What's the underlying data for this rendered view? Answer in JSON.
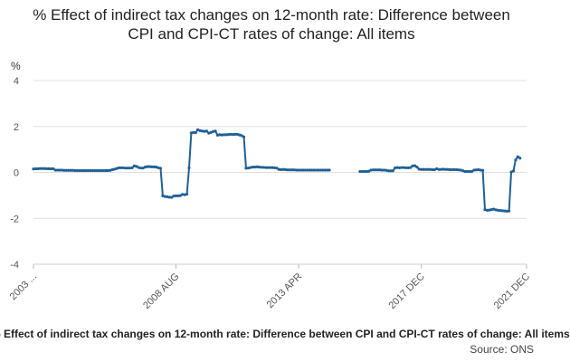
{
  "chart_data": {
    "type": "line",
    "title": "% Effect of indirect tax changes on 12-month rate: Difference between CPI and CPI-CT rates of change: All items",
    "unit_label": "%",
    "xlabel": "",
    "ylabel": "%",
    "ylim": [
      -4,
      4
    ],
    "y_ticks": [
      -4,
      -2,
      0,
      2,
      4
    ],
    "x_ticks": [
      "2003 ...",
      "2008 AUG",
      "2013 APR",
      "2017 DEC",
      "2021 DEC"
    ],
    "x_tick_index": [
      0,
      65,
      121,
      177,
      225
    ],
    "n_points": 226,
    "color": "#206095",
    "series": [
      {
        "name": "All items",
        "segments": [
          {
            "start": 0,
            "values": [
              0.15,
              0.16,
              0.16,
              0.17,
              0.17,
              0.17,
              0.16,
              0.16,
              0.16,
              0.16,
              0.1,
              0.1,
              0.1,
              0.1,
              0.09,
              0.09,
              0.09,
              0.09,
              0.09,
              0.08,
              0.08,
              0.08,
              0.08,
              0.08,
              0.08,
              0.08,
              0.08,
              0.08,
              0.08,
              0.08,
              0.08,
              0.08,
              0.08,
              0.08,
              0.08,
              0.09,
              0.12,
              0.14,
              0.17,
              0.2,
              0.2,
              0.2,
              0.19,
              0.19,
              0.19,
              0.2,
              0.28,
              0.26,
              0.21,
              0.19,
              0.19,
              0.23,
              0.25,
              0.25,
              0.24,
              0.24,
              0.23,
              0.2,
              0.18,
              -1.02,
              -1.05,
              -1.06,
              -1.08,
              -1.09,
              -1.03,
              -1.02,
              -1.02,
              -1.01,
              -0.96,
              -0.97,
              -0.95,
              0.2,
              1.72,
              1.74,
              1.73,
              1.86,
              1.82,
              1.8,
              1.79,
              1.8,
              1.71,
              1.74,
              1.78,
              1.8,
              1.62,
              1.64,
              1.63,
              1.64,
              1.64,
              1.65,
              1.66,
              1.65,
              1.66,
              1.66,
              1.63,
              1.6,
              1.55,
              0.18,
              0.19,
              0.21,
              0.23,
              0.23,
              0.24,
              0.23,
              0.22,
              0.22,
              0.21,
              0.21,
              0.21,
              0.21,
              0.2,
              0.19,
              0.13,
              0.12,
              0.13,
              0.12,
              0.11,
              0.11,
              0.11,
              0.11,
              0.1,
              0.1,
              0.1,
              0.1,
              0.1,
              0.1,
              0.1,
              0.1,
              0.1,
              0.1,
              0.1,
              0.1,
              0.1,
              0.1,
              0.1,
              0.1
            ]
          },
          {
            "start": 149,
            "values": [
              0.04,
              0.04,
              0.04,
              0.04,
              0.05,
              0.1,
              0.11,
              0.11,
              0.11,
              0.11,
              0.1,
              0.1,
              0.09,
              0.07,
              0.07,
              0.07,
              0.2,
              0.21,
              0.2,
              0.21,
              0.21,
              0.2,
              0.2,
              0.21,
              0.28,
              0.29,
              0.23,
              0.14,
              0.13,
              0.13,
              0.13,
              0.13,
              0.13,
              0.12,
              0.12,
              0.16,
              0.13,
              0.13,
              0.14,
              0.13,
              0.13,
              0.12,
              0.12,
              0.12,
              0.12,
              0.11,
              0.1,
              0.07,
              0.04,
              0.04,
              0.04,
              0.04,
              0.1,
              0.11,
              0.12,
              0.1,
              0.09,
              -1.62,
              -1.65,
              -1.64,
              -1.62,
              -1.6,
              -1.63,
              -1.65,
              -1.66,
              -1.67,
              -1.68,
              -1.69,
              -1.68,
              0.02,
              0.06,
              0.54,
              0.68,
              0.62
            ]
          }
        ]
      }
    ],
    "x_axis_full_title": "% Effect of indirect tax changes on 12-month rate: Difference between CPI and CPI-CT rates of change: All items",
    "source_label": "Source: ONS"
  }
}
